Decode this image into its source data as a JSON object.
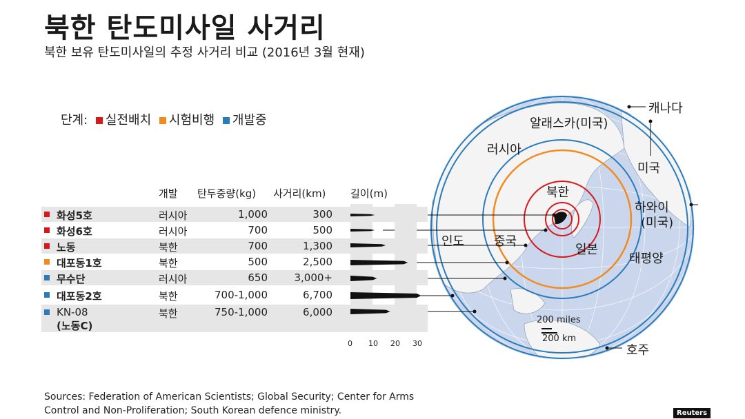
{
  "title": "북한 탄도미사일 사거리",
  "subtitle": "북한 보유 탄도미사일의 추정 사거리 비교 (2016년 3월 현재)",
  "legend": {
    "prefix": "단계:",
    "items": [
      {
        "label": "실전배치",
        "color": "#d7191c"
      },
      {
        "label": "시험비행",
        "color": "#f28a1e"
      },
      {
        "label": "개발중",
        "color": "#2b7bba"
      }
    ]
  },
  "table": {
    "headers": {
      "developer": "개발",
      "payload": "탄두중량(kg)",
      "range": "사거리(km)",
      "length": "길이(m)"
    },
    "rows": [
      {
        "name": "화성5호",
        "developer": "러시아",
        "payload": "1,000",
        "range": "300",
        "status_color": "#d7191c",
        "length_m": 11
      },
      {
        "name": "화성6호",
        "developer": "러시아",
        "payload": "700",
        "range": "500",
        "status_color": "#d7191c",
        "length_m": 11
      },
      {
        "name": "노동",
        "developer": "북한",
        "payload": "700",
        "range": "1,300",
        "status_color": "#d7191c",
        "length_m": 16
      },
      {
        "name": "대포동1호",
        "developer": "북한",
        "payload": "500",
        "range": "2,500",
        "status_color": "#f28a1e",
        "length_m": 26
      },
      {
        "name": "무수단",
        "developer": "러시아",
        "payload": "650",
        "range": "3,000+",
        "status_color": "#2b7bba",
        "length_m": 12
      },
      {
        "name": "대포동2호",
        "developer": "북한",
        "payload": "700-1,000",
        "range": "6,700",
        "status_color": "#2b7bba",
        "length_m": 32
      },
      {
        "name": "KN-08",
        "name2": "(노동C)",
        "developer": "북한",
        "payload": "750-1,000",
        "range": "6,000",
        "status_color": "#2b7bba",
        "length_m": 18
      }
    ],
    "length_ticks": [
      "0",
      "10",
      "20",
      "30"
    ]
  },
  "map": {
    "labels": {
      "canada": "캐나다",
      "alaska": "알래스카(미국)",
      "russia": "러시아",
      "usa": "미국",
      "hawaii1": "하와이",
      "hawaii2": "(미국)",
      "nk": "북한",
      "india": "인도",
      "china": "중국",
      "japan": "일본",
      "pacific": "태평양",
      "australia": "호주"
    },
    "scale_miles": "200 miles",
    "scale_km": "200 km"
  },
  "sources": "Sources: Federation of American Scientists; Global Security; Center for Arms Control and Non-Proliferation; South Korean defence ministry.",
  "credit": "Reuters"
}
